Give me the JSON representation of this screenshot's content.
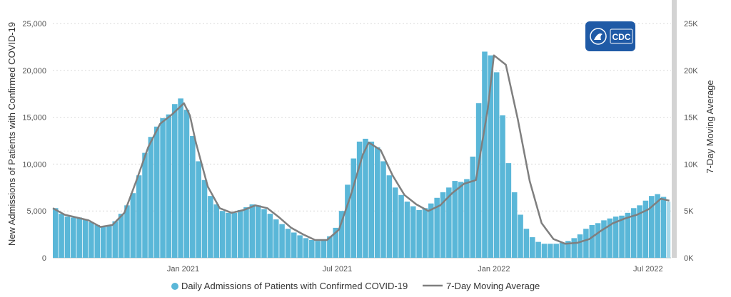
{
  "logo": {
    "text": "CDC"
  },
  "legend": {
    "daily_label": "Daily Admissions of Patients with Confirmed COVID-19",
    "avg_label": "7-Day Moving Average"
  },
  "colors": {
    "bars": "#5ab7d8",
    "bars_last": "#a9d9ea",
    "line": "#7f7f7f",
    "grid": "#d9d9d9",
    "right_axis_bar": "#d3d3d3",
    "logo_bg": "#1f5aa6"
  },
  "chart_data": {
    "type": "bar",
    "title": "",
    "ylabel": "New Admissions of Patients with Confirmed COVID-19",
    "y2label": "7-Day Moving Average",
    "ylim": [
      0,
      25000
    ],
    "y_ticks": [
      "0",
      "5,000",
      "10,000",
      "15,000",
      "20,000",
      "25,000"
    ],
    "y2_ticks": [
      "0K",
      "5K",
      "10K",
      "15K",
      "20K",
      "25K"
    ],
    "x_ticks": [
      {
        "label": "Jan 2021",
        "date": "2021-01-01"
      },
      {
        "label": "Jul 2021",
        "date": "2021-07-01"
      },
      {
        "label": "Jan 2022",
        "date": "2022-01-01"
      },
      {
        "label": "Jul 2022",
        "date": "2022-07-01"
      }
    ],
    "xlim": [
      "2020-08-01",
      "2022-07-28"
    ],
    "series": [
      {
        "name": "Daily Admissions of Patients with Confirmed COVID-19",
        "kind": "bar",
        "x": [
          "2020-08-01",
          "2020-08-08",
          "2020-08-15",
          "2020-08-22",
          "2020-08-29",
          "2020-09-05",
          "2020-09-12",
          "2020-09-19",
          "2020-09-26",
          "2020-10-03",
          "2020-10-10",
          "2020-10-17",
          "2020-10-24",
          "2020-10-31",
          "2020-11-07",
          "2020-11-14",
          "2020-11-21",
          "2020-11-28",
          "2020-12-05",
          "2020-12-12",
          "2020-12-19",
          "2020-12-26",
          "2021-01-02",
          "2021-01-09",
          "2021-01-16",
          "2021-01-23",
          "2021-01-30",
          "2021-02-06",
          "2021-02-13",
          "2021-02-20",
          "2021-02-27",
          "2021-03-06",
          "2021-03-13",
          "2021-03-20",
          "2021-03-27",
          "2021-04-03",
          "2021-04-10",
          "2021-04-17",
          "2021-04-24",
          "2021-05-01",
          "2021-05-08",
          "2021-05-15",
          "2021-05-22",
          "2021-05-29",
          "2021-06-05",
          "2021-06-12",
          "2021-06-19",
          "2021-06-26",
          "2021-07-03",
          "2021-07-10",
          "2021-07-17",
          "2021-07-24",
          "2021-07-31",
          "2021-08-07",
          "2021-08-14",
          "2021-08-21",
          "2021-08-28",
          "2021-09-04",
          "2021-09-11",
          "2021-09-18",
          "2021-09-25",
          "2021-10-02",
          "2021-10-09",
          "2021-10-16",
          "2021-10-23",
          "2021-10-30",
          "2021-11-06",
          "2021-11-13",
          "2021-11-20",
          "2021-11-27",
          "2021-12-04",
          "2021-12-11",
          "2021-12-18",
          "2021-12-25",
          "2022-01-01",
          "2022-01-08",
          "2022-01-15",
          "2022-01-22",
          "2022-01-29",
          "2022-02-05",
          "2022-02-12",
          "2022-02-19",
          "2022-02-26",
          "2022-03-05",
          "2022-03-12",
          "2022-03-19",
          "2022-03-26",
          "2022-04-02",
          "2022-04-09",
          "2022-04-16",
          "2022-04-23",
          "2022-04-30",
          "2022-05-07",
          "2022-05-14",
          "2022-05-21",
          "2022-05-28",
          "2022-06-04",
          "2022-06-11",
          "2022-06-18",
          "2022-06-25",
          "2022-07-02",
          "2022-07-09",
          "2022-07-16",
          "2022-07-23"
        ],
        "values": [
          5300,
          4700,
          4400,
          4300,
          4300,
          4100,
          3800,
          3500,
          3300,
          3400,
          3900,
          4700,
          5600,
          6900,
          8800,
          11200,
          12900,
          14000,
          14900,
          15300,
          16400,
          17000,
          15800,
          13000,
          10300,
          8300,
          6600,
          5700,
          5000,
          4800,
          4800,
          5100,
          5400,
          5700,
          5600,
          5200,
          4700,
          4100,
          3600,
          3100,
          2700,
          2400,
          2100,
          1900,
          1800,
          1900,
          2300,
          3200,
          5000,
          7800,
          10600,
          12400,
          12700,
          12400,
          11800,
          10300,
          8800,
          7500,
          6700,
          6000,
          5500,
          5100,
          5300,
          5800,
          6400,
          7000,
          7500,
          8200,
          8100,
          8400,
          10800,
          16500,
          22000,
          21600,
          19800,
          15200,
          10100,
          7000,
          4600,
          3100,
          2200,
          1700,
          1500,
          1500,
          1500,
          1600,
          1800,
          2100,
          2500,
          3100,
          3500,
          3700,
          4000,
          4200,
          4400,
          4500,
          4800,
          5300,
          5600,
          6100,
          6600,
          6800,
          6500,
          6000
        ]
      },
      {
        "name": "7-Day Moving Average",
        "kind": "line",
        "x": [
          "2020-08-01",
          "2020-08-15",
          "2020-08-29",
          "2020-09-12",
          "2020-09-26",
          "2020-10-10",
          "2020-10-24",
          "2020-11-07",
          "2020-11-21",
          "2020-12-05",
          "2020-12-19",
          "2021-01-02",
          "2021-01-09",
          "2021-01-16",
          "2021-01-30",
          "2021-02-13",
          "2021-02-27",
          "2021-03-13",
          "2021-03-27",
          "2021-04-10",
          "2021-04-24",
          "2021-05-08",
          "2021-05-22",
          "2021-06-05",
          "2021-06-19",
          "2021-07-03",
          "2021-07-17",
          "2021-07-31",
          "2021-08-07",
          "2021-08-21",
          "2021-09-04",
          "2021-09-18",
          "2021-10-02",
          "2021-10-16",
          "2021-10-30",
          "2021-11-13",
          "2021-11-27",
          "2021-12-11",
          "2021-12-25",
          "2022-01-01",
          "2022-01-15",
          "2022-01-29",
          "2022-02-12",
          "2022-02-26",
          "2022-03-12",
          "2022-03-26",
          "2022-04-09",
          "2022-04-23",
          "2022-05-07",
          "2022-05-21",
          "2022-06-04",
          "2022-06-18",
          "2022-07-02",
          "2022-07-16",
          "2022-07-26"
        ],
        "values": [
          5300,
          4600,
          4300,
          4000,
          3300,
          3500,
          4800,
          8200,
          11800,
          14300,
          15300,
          16500,
          15200,
          12300,
          7600,
          5300,
          4800,
          5100,
          5600,
          5300,
          4300,
          3200,
          2500,
          1900,
          1900,
          3000,
          6700,
          11000,
          12300,
          11500,
          8800,
          6700,
          5700,
          5000,
          5600,
          6900,
          7900,
          8300,
          16000,
          21600,
          20600,
          14800,
          8200,
          3700,
          2000,
          1500,
          1600,
          2000,
          2900,
          3700,
          4200,
          4600,
          5200,
          6300,
          6100
        ]
      }
    ]
  }
}
